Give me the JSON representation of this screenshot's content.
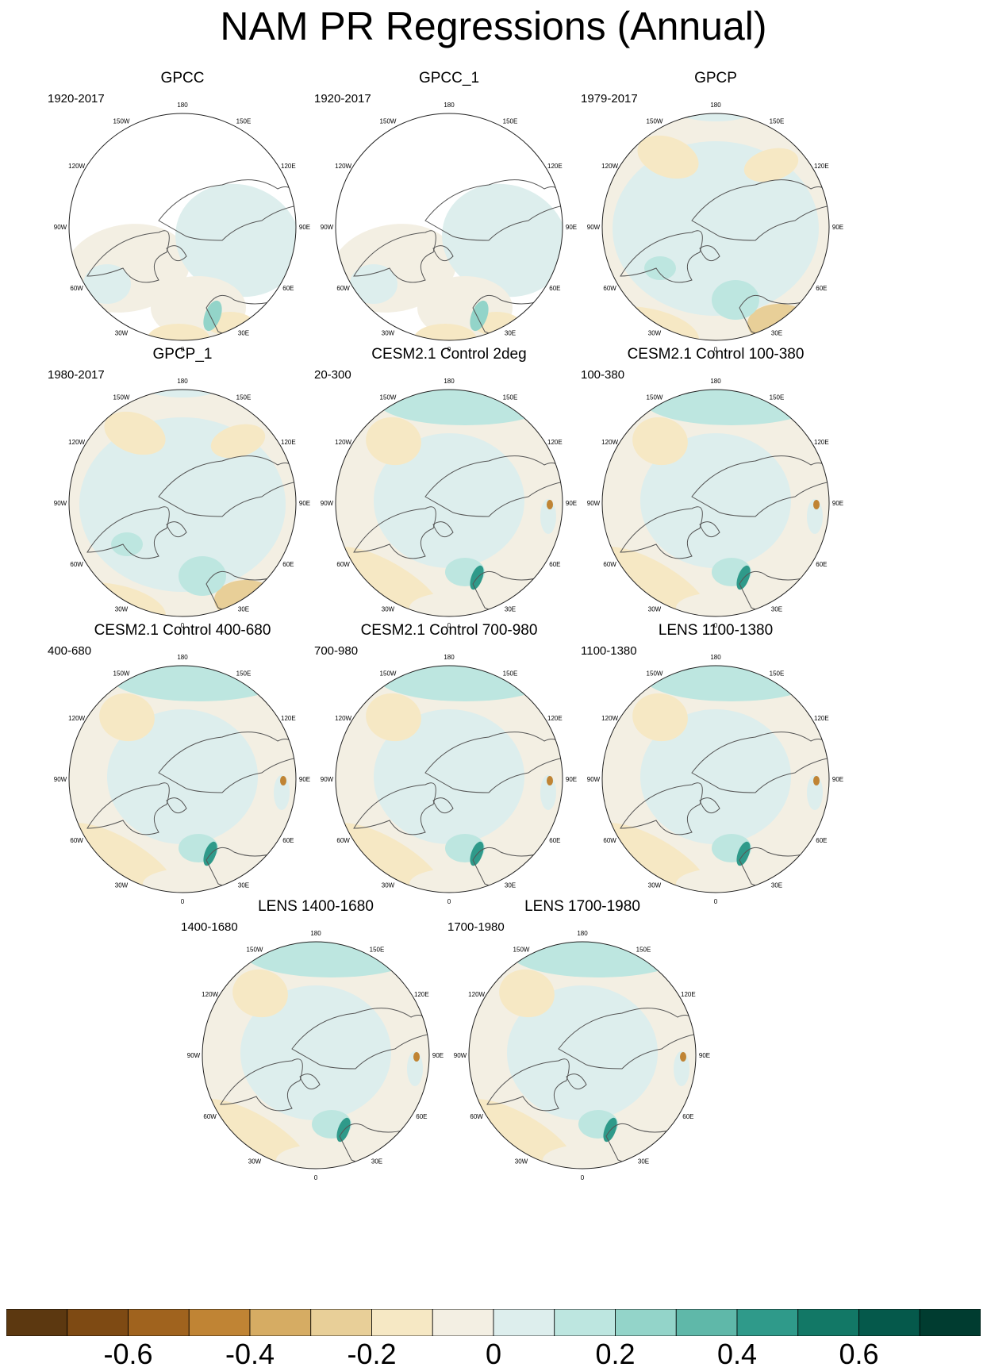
{
  "title": "NAM PR Regressions (Annual)",
  "longitude_labels": [
    "180",
    "150E",
    "120E",
    "90E",
    "60E",
    "30E",
    "0",
    "30W",
    "60W",
    "90W",
    "120W",
    "150W"
  ],
  "panels": [
    {
      "title": "GPCC",
      "period": "1920-2017",
      "style": "obs-gpcc"
    },
    {
      "title": "GPCC_1",
      "period": "1920-2017",
      "style": "obs-gpcc"
    },
    {
      "title": "GPCP",
      "period": "1979-2017",
      "style": "obs-gpcp"
    },
    {
      "title": "GPCP_1",
      "period": "1980-2017",
      "style": "obs-gpcp"
    },
    {
      "title": "CESM2.1 Control 2deg",
      "period": "20-300",
      "style": "model"
    },
    {
      "title": "CESM2.1 Control 100-380",
      "period": "100-380",
      "style": "model"
    },
    {
      "title": "CESM2.1 Control 400-680",
      "period": "400-680",
      "style": "model"
    },
    {
      "title": "CESM2.1 Control 700-980",
      "period": "700-980",
      "style": "model"
    },
    {
      "title": "LENS 1100-1380",
      "period": "1100-1380",
      "style": "model"
    },
    {
      "title": "LENS 1400-1680",
      "period": "1400-1680",
      "style": "model"
    },
    {
      "title": "LENS 1700-1980",
      "period": "1700-1980",
      "style": "model"
    }
  ],
  "colorbar": {
    "colors": [
      "#5c3810",
      "#7e4a13",
      "#a0631e",
      "#c08434",
      "#d6ac63",
      "#e8cf98",
      "#f6e8c4",
      "#f3efe3",
      "#ddeeed",
      "#bde6e0",
      "#93d4c9",
      "#5fb8a9",
      "#2f9a8a",
      "#127866",
      "#05594b",
      "#003c30"
    ],
    "tick_labels": [
      "-0.6",
      "-0.4",
      "-0.2",
      "0",
      "0.2",
      "0.4",
      "0.6"
    ]
  },
  "colors": {
    "land_outline": "#555555",
    "ocean_outline": "#3a5f88",
    "negative": "#e8cf98",
    "positive": "#bde6e0",
    "neutral": "#f3efe3"
  }
}
